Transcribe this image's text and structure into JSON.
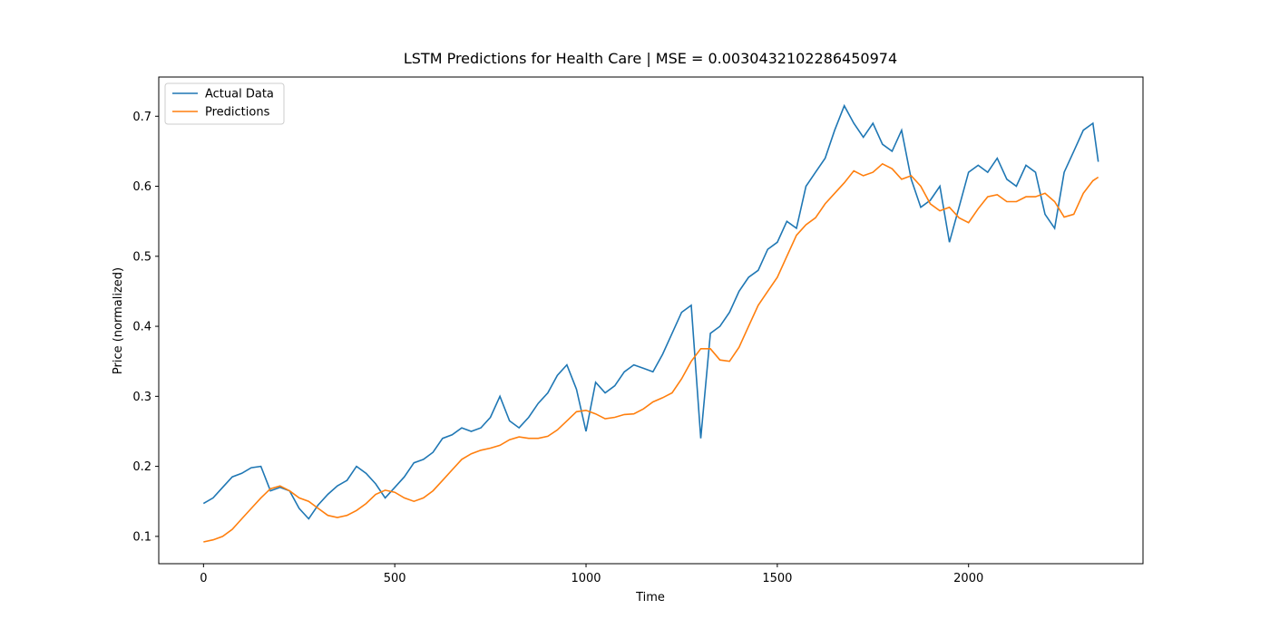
{
  "chart_data": {
    "type": "line",
    "title": "LSTM Predictions for Health Care | MSE = 0.0030432102286450974",
    "xlabel": "Time",
    "ylabel": "Price (normalized)",
    "x": [
      0,
      25,
      50,
      75,
      100,
      125,
      150,
      175,
      200,
      225,
      250,
      275,
      300,
      325,
      350,
      375,
      400,
      425,
      450,
      475,
      500,
      525,
      550,
      575,
      600,
      625,
      650,
      675,
      700,
      725,
      750,
      775,
      800,
      825,
      850,
      875,
      900,
      925,
      950,
      975,
      1000,
      1025,
      1050,
      1075,
      1100,
      1125,
      1150,
      1175,
      1200,
      1225,
      1250,
      1275,
      1300,
      1325,
      1350,
      1375,
      1400,
      1425,
      1450,
      1475,
      1500,
      1525,
      1550,
      1575,
      1600,
      1625,
      1650,
      1675,
      1700,
      1725,
      1750,
      1775,
      1800,
      1825,
      1850,
      1875,
      1900,
      1925,
      1950,
      1975,
      2000,
      2025,
      2050,
      2075,
      2100,
      2125,
      2150,
      2175,
      2200,
      2225,
      2250,
      2275,
      2300,
      2325,
      2339
    ],
    "series": [
      {
        "name": "Actual Data",
        "color": "#1f77b4",
        "values": [
          0.147,
          0.155,
          0.17,
          0.185,
          0.19,
          0.198,
          0.2,
          0.165,
          0.17,
          0.165,
          0.14,
          0.125,
          0.145,
          0.16,
          0.172,
          0.18,
          0.2,
          0.19,
          0.175,
          0.155,
          0.17,
          0.185,
          0.205,
          0.21,
          0.22,
          0.24,
          0.245,
          0.255,
          0.25,
          0.255,
          0.27,
          0.3,
          0.265,
          0.255,
          0.27,
          0.29,
          0.305,
          0.33,
          0.345,
          0.31,
          0.25,
          0.32,
          0.305,
          0.315,
          0.335,
          0.345,
          0.34,
          0.335,
          0.36,
          0.39,
          0.42,
          0.43,
          0.24,
          0.39,
          0.4,
          0.42,
          0.45,
          0.47,
          0.48,
          0.51,
          0.52,
          0.55,
          0.54,
          0.6,
          0.62,
          0.64,
          0.68,
          0.715,
          0.69,
          0.67,
          0.69,
          0.66,
          0.65,
          0.68,
          0.61,
          0.57,
          0.58,
          0.6,
          0.52,
          0.57,
          0.62,
          0.63,
          0.62,
          0.64,
          0.61,
          0.6,
          0.63,
          0.62,
          0.56,
          0.54,
          0.62,
          0.65,
          0.68,
          0.69,
          0.635
        ]
      },
      {
        "name": "Predictions",
        "color": "#ff7f0e",
        "values": [
          0.092,
          0.095,
          0.1,
          0.11,
          0.125,
          0.14,
          0.155,
          0.168,
          0.172,
          0.165,
          0.155,
          0.15,
          0.14,
          0.13,
          0.127,
          0.13,
          0.137,
          0.147,
          0.16,
          0.166,
          0.163,
          0.155,
          0.15,
          0.155,
          0.165,
          0.18,
          0.195,
          0.21,
          0.218,
          0.223,
          0.226,
          0.23,
          0.238,
          0.242,
          0.24,
          0.24,
          0.243,
          0.252,
          0.265,
          0.278,
          0.28,
          0.275,
          0.268,
          0.27,
          0.274,
          0.275,
          0.282,
          0.292,
          0.298,
          0.305,
          0.325,
          0.35,
          0.368,
          0.368,
          0.352,
          0.35,
          0.37,
          0.4,
          0.43,
          0.45,
          0.47,
          0.5,
          0.53,
          0.545,
          0.555,
          0.575,
          0.59,
          0.605,
          0.622,
          0.615,
          0.62,
          0.632,
          0.625,
          0.61,
          0.615,
          0.6,
          0.575,
          0.565,
          0.57,
          0.555,
          0.548,
          0.568,
          0.585,
          0.588,
          0.578,
          0.578,
          0.585,
          0.585,
          0.59,
          0.578,
          0.556,
          0.56,
          0.59,
          0.608,
          0.613
        ]
      }
    ],
    "xlim": [
      -117,
      2456
    ],
    "ylim": [
      0.061,
      0.756
    ],
    "xticks": [
      0,
      500,
      1000,
      1500,
      2000
    ],
    "yticks": [
      0.1,
      0.2,
      0.3,
      0.4,
      0.5,
      0.6,
      0.7
    ],
    "legend": "upper left"
  }
}
